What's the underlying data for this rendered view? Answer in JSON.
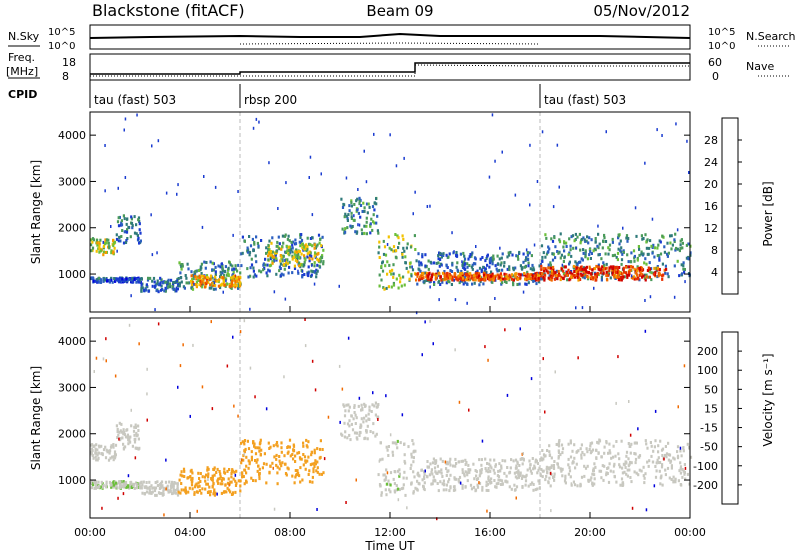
{
  "header": {
    "station": "Blackstone (fitACF)",
    "beam": "Beam 09",
    "date": "05/Nov/2012"
  },
  "top_labels": {
    "nsky": "N.Sky",
    "nsky_t1": "10^5",
    "nsky_t0": "10^0",
    "nsearch": "N.Search",
    "nsearch_t1": "10^5",
    "nsearch_t0": "10^0",
    "freq": "Freq.",
    "freq_unit": "[MHz]",
    "freq_hi": "18",
    "freq_lo": "8",
    "nave": "Nave",
    "nave_hi": "60",
    "nave_lo": "0",
    "cpid": "CPID"
  },
  "cpid_segments": [
    {
      "label": "tau (fast) 503",
      "start": 0,
      "end": 6
    },
    {
      "label": "rbsp 200",
      "start": 6,
      "end": 18
    },
    {
      "label": "tau (fast) 503",
      "start": 18,
      "end": 24
    }
  ],
  "colors": {
    "power_scale": [
      "#0000dd",
      "#1a3bd0",
      "#2b5fc0",
      "#2f7a7a",
      "#4a9a5a",
      "#6bbf3a",
      "#f2c200",
      "#f39a00",
      "#f06a00",
      "#e83000",
      "#d00000"
    ],
    "velocity_scale": [
      "#0000dd",
      "#1a3bd0",
      "#2f7a7a",
      "#6bbf3a",
      "#c8c8c0",
      "#f3a020",
      "#f06a00",
      "#e83000",
      "#d00000"
    ]
  },
  "chart_data": [
    {
      "type": "heatmap",
      "title": "",
      "xlabel": "",
      "ylabel": "Slant Range [km]",
      "xlim": [
        0,
        24
      ],
      "ylim": [
        180,
        4500
      ],
      "yticks": [
        "1000",
        "2000",
        "3000",
        "4000"
      ],
      "colorbar": {
        "label": "Power [dB]",
        "ticks": [
          "4",
          "8",
          "12",
          "16",
          "20",
          "24",
          "28"
        ],
        "range": [
          0,
          30
        ]
      },
      "bands": [
        {
          "x": [
            0,
            1
          ],
          "y": [
            1450,
            1800
          ],
          "level": 16
        },
        {
          "x": [
            1,
            2
          ],
          "y": [
            1700,
            2300
          ],
          "level": 8
        },
        {
          "x": [
            0,
            2
          ],
          "y": [
            850,
            950
          ],
          "level": 6
        },
        {
          "x": [
            2,
            3.5
          ],
          "y": [
            650,
            950
          ],
          "level": 8
        },
        {
          "x": [
            3.5,
            6
          ],
          "y": [
            700,
            1300
          ],
          "level": 10
        },
        {
          "x": [
            4,
            6
          ],
          "y": [
            750,
            1000
          ],
          "level": 20
        },
        {
          "x": [
            6,
            9.3
          ],
          "y": [
            950,
            1900
          ],
          "level": 8
        },
        {
          "x": [
            7,
            9.3
          ],
          "y": [
            1200,
            1700
          ],
          "level": 16
        },
        {
          "x": [
            10,
            11.5
          ],
          "y": [
            1900,
            2700
          ],
          "level": 10
        },
        {
          "x": [
            11.5,
            13
          ],
          "y": [
            700,
            1900
          ],
          "level": 14
        },
        {
          "x": [
            13,
            18
          ],
          "y": [
            800,
            1500
          ],
          "level": 8
        },
        {
          "x": [
            13,
            18
          ],
          "y": [
            900,
            1050
          ],
          "level": 24
        },
        {
          "x": [
            18,
            24
          ],
          "y": [
            900,
            1900
          ],
          "level": 10
        },
        {
          "x": [
            18,
            23
          ],
          "y": [
            900,
            1200
          ],
          "level": 26
        }
      ]
    },
    {
      "type": "heatmap",
      "title": "",
      "xlabel": "Time UT",
      "ylabel": "Slant Range [km]",
      "xlim": [
        0,
        24
      ],
      "ylim": [
        180,
        4500
      ],
      "xticks": [
        "00:00",
        "04:00",
        "08:00",
        "12:00",
        "16:00",
        "20:00",
        "00:00"
      ],
      "yticks": [
        "1000",
        "2000",
        "3000",
        "4000"
      ],
      "colorbar": {
        "label": "Velocity [m s⁻¹]",
        "ticks": [
          "200",
          "100",
          "50",
          "15",
          "-15",
          "-50",
          "-100",
          "-200"
        ],
        "range": [
          -250,
          250
        ]
      },
      "bands": [
        {
          "x": [
            0,
            1
          ],
          "y": [
            1450,
            1800
          ],
          "level": 0
        },
        {
          "x": [
            1,
            2
          ],
          "y": [
            1700,
            2300
          ],
          "level": 0
        },
        {
          "x": [
            0,
            2
          ],
          "y": [
            850,
            1000
          ],
          "level": 20
        },
        {
          "x": [
            2,
            3.5
          ],
          "y": [
            700,
            1000
          ],
          "level": 0
        },
        {
          "x": [
            3.5,
            6
          ],
          "y": [
            700,
            1300
          ],
          "level": -50
        },
        {
          "x": [
            6,
            9.3
          ],
          "y": [
            950,
            1900
          ],
          "level": -60
        },
        {
          "x": [
            10,
            11.5
          ],
          "y": [
            1900,
            2700
          ],
          "level": 0
        },
        {
          "x": [
            11.5,
            13
          ],
          "y": [
            700,
            1900
          ],
          "level": 10
        },
        {
          "x": [
            13,
            18
          ],
          "y": [
            800,
            1500
          ],
          "level": 0
        },
        {
          "x": [
            18,
            24
          ],
          "y": [
            900,
            1900
          ],
          "level": 0
        }
      ]
    }
  ]
}
